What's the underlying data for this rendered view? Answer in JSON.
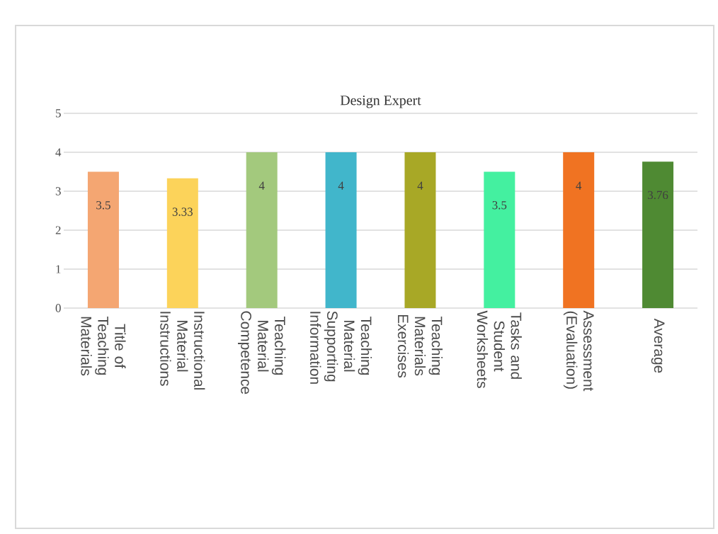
{
  "chart_data": {
    "type": "bar",
    "title": "Design Expert",
    "categories": [
      "Title of Teaching Materials",
      "Instructional Material Instructions",
      "Teaching Material Competence",
      "Teaching Material Supporting Information",
      "Teaching Materials Exercises",
      "Tasks and Student Worksheets",
      "Assessment (Evaluation)",
      "Average"
    ],
    "values": [
      3.5,
      3.33,
      4,
      4,
      4,
      3.5,
      4,
      3.76
    ],
    "colors": [
      "#f4a672",
      "#fcd35a",
      "#a3c97d",
      "#41b6cb",
      "#a8a826",
      "#44f0a0",
      "#f07322",
      "#4f8a33"
    ],
    "ylim": [
      0,
      5
    ],
    "yticks": [
      0,
      1,
      2,
      3,
      4,
      5
    ],
    "grid": "y",
    "data_labels": true
  }
}
